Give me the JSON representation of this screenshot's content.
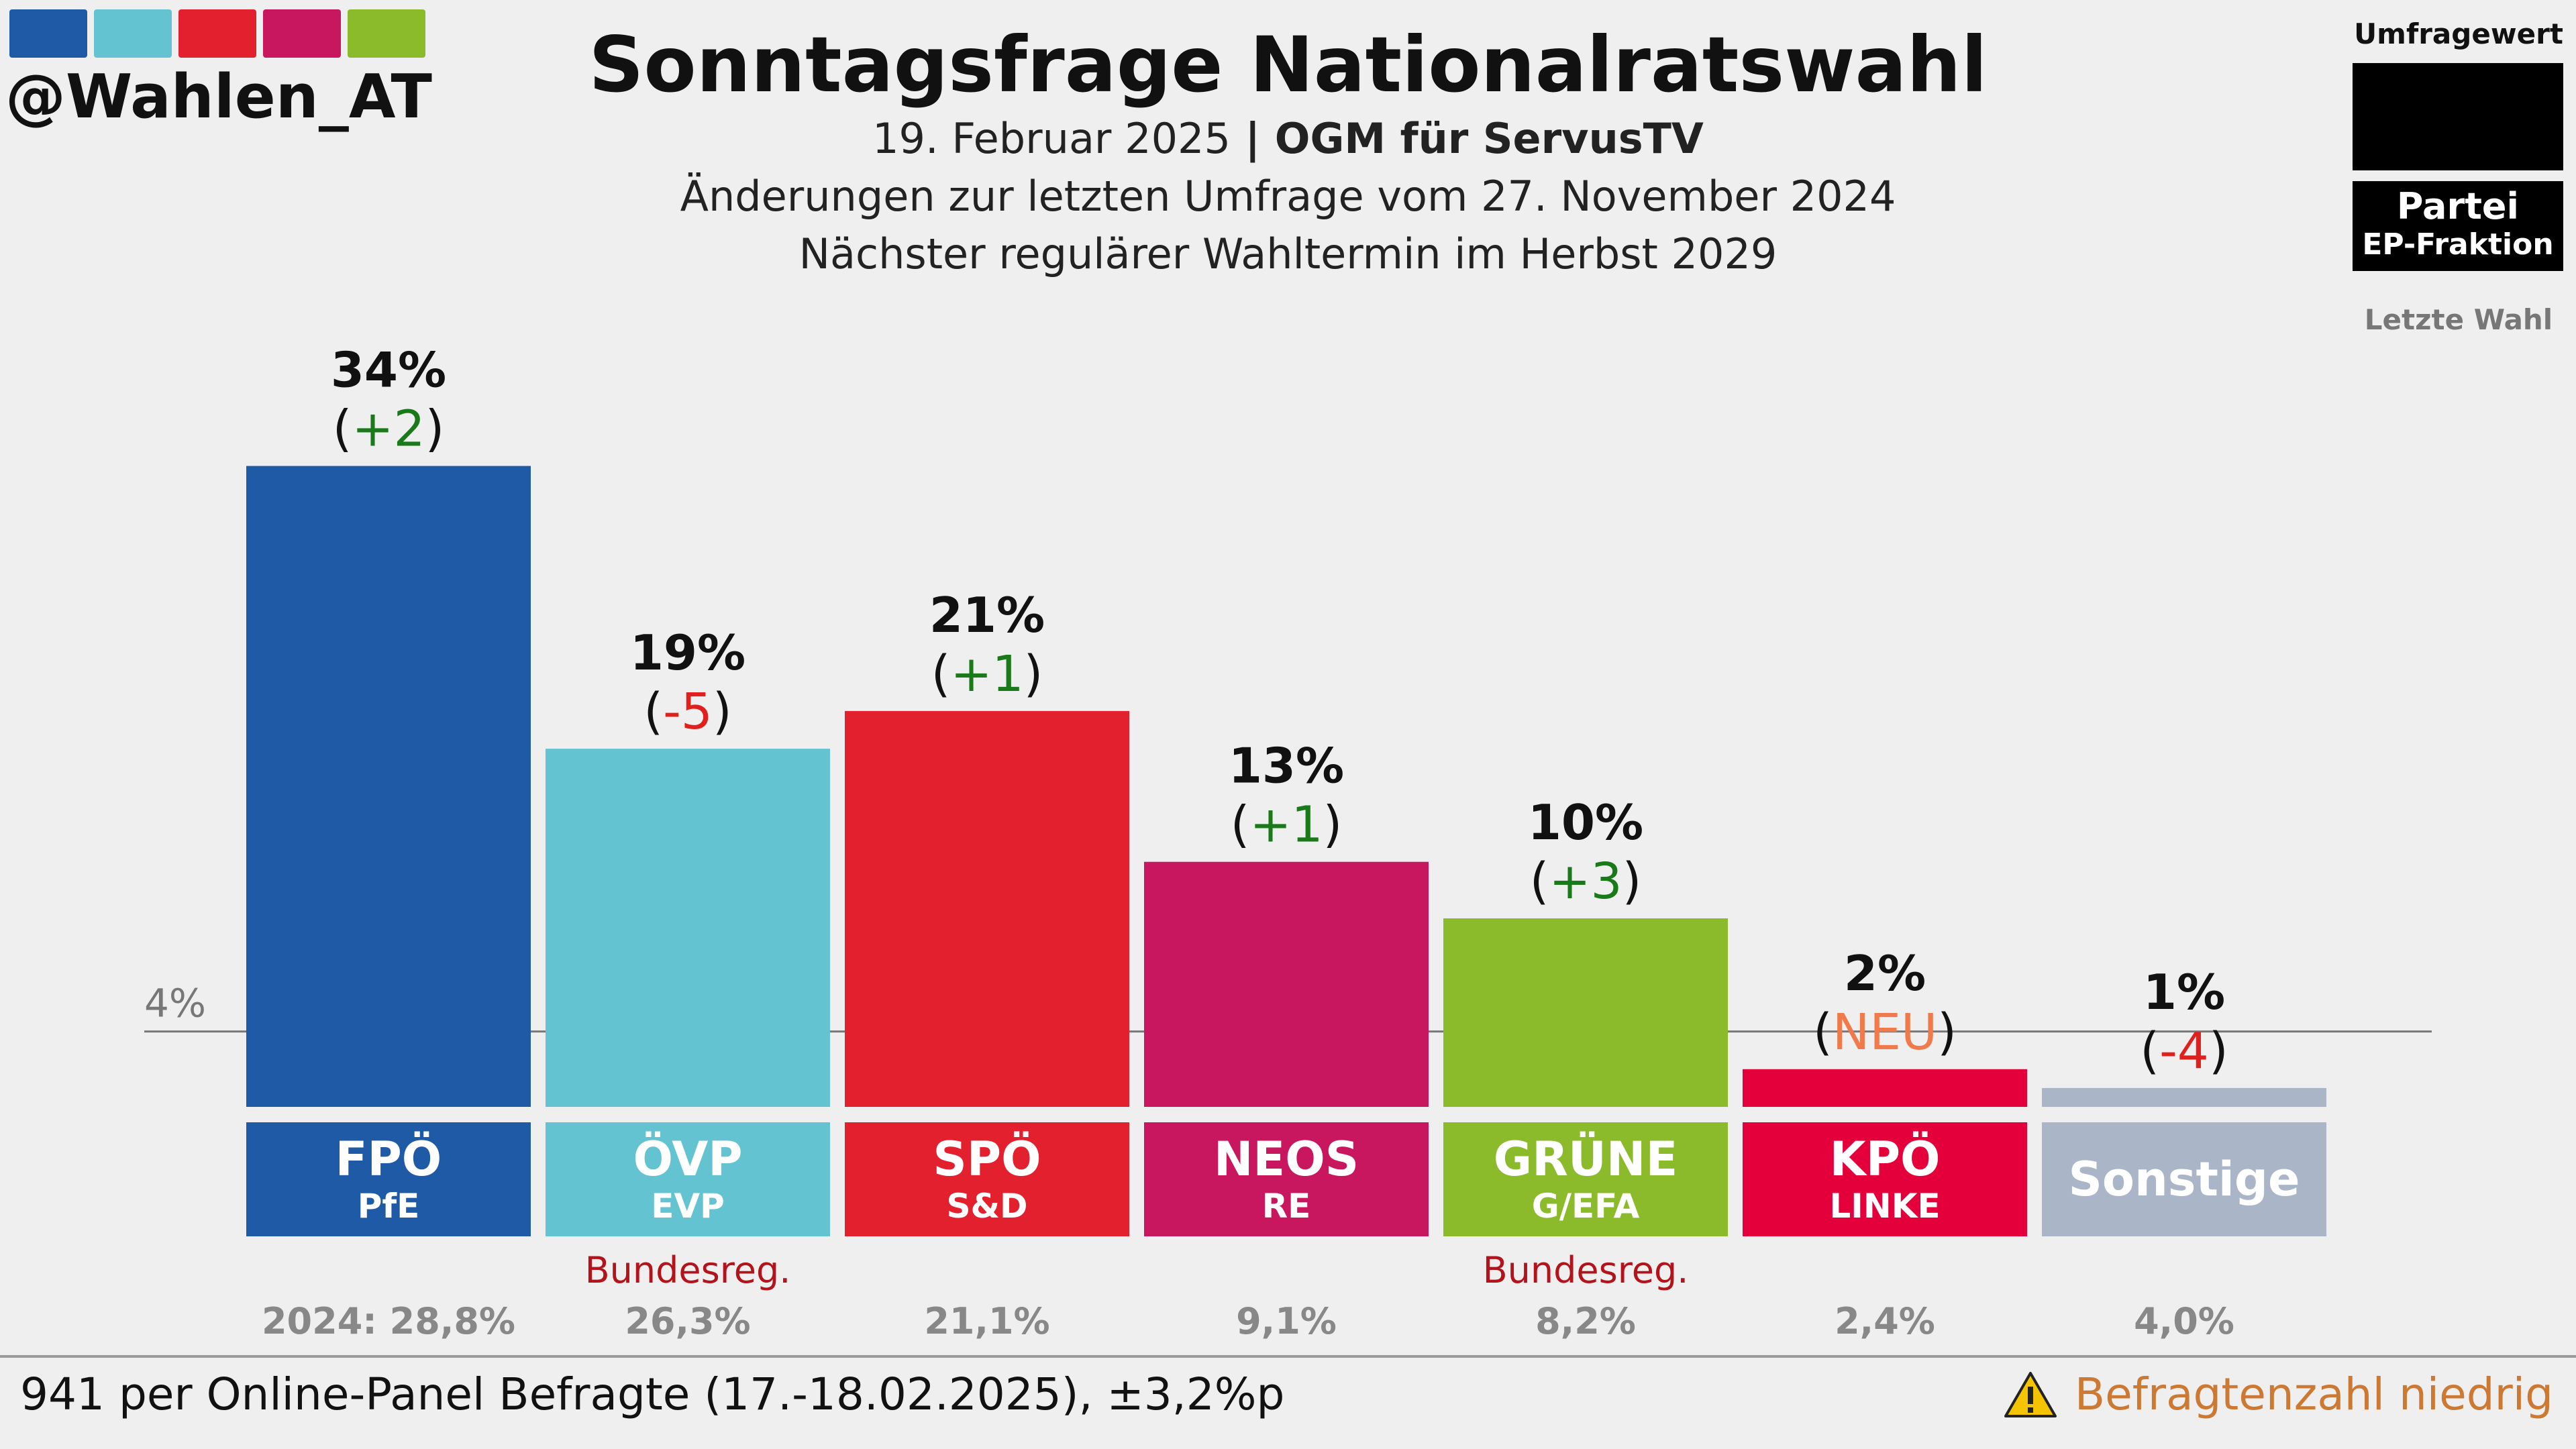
{
  "brand": {
    "handle": "@Wahlen_AT",
    "strip_colors": [
      "#1f5aa6",
      "#63c3d1",
      "#e3202d",
      "#c8175f",
      "#8bba2b"
    ]
  },
  "header": {
    "title": "Sonntagsfrage Nationalratswahl",
    "date": "19. Februar 2025",
    "separator": " | ",
    "pollster": "OGM für ServusTV",
    "change_note": "Änderungen zur letzten Umfrage vom 27. November 2024",
    "next_election": "Nächster regulärer Wahltermin im Herbst 2029"
  },
  "legend": {
    "poll_value": "Umfragewert",
    "party": "Partei",
    "ep_group": "EP-Fraktion",
    "last_election": "Letzte Wahl"
  },
  "threshold_label": "4%",
  "last_election_prefix": "2024: ",
  "footer": {
    "sample": "941 per Online-Panel Befragte (17.-18.02.2025), ±3,2%p",
    "warning": "Befragtenzahl niedrig"
  },
  "chart_data": {
    "type": "bar",
    "title": "Sonntagsfrage Nationalratswahl",
    "unit": "%",
    "threshold": 4,
    "categories": [
      "FPÖ",
      "ÖVP",
      "SPÖ",
      "NEOS",
      "GRÜNE",
      "KPÖ",
      "Sonstige"
    ],
    "values": [
      34,
      19,
      21,
      13,
      10,
      2,
      1
    ],
    "value_labels": [
      "34%",
      "19%",
      "21%",
      "13%",
      "10%",
      "2%",
      "1%"
    ],
    "changes": [
      "+2",
      "-5",
      "+1",
      "+1",
      "+3",
      "NEU",
      "-4"
    ],
    "change_colors": [
      "#1a7a1a",
      "#e0201c",
      "#1a7a1a",
      "#1a7a1a",
      "#1a7a1a",
      "#f07a4a",
      "#e0201c"
    ],
    "ep_groups": [
      "PfE",
      "EVP",
      "S&D",
      "RE",
      "G/EFA",
      "LINKE",
      ""
    ],
    "government": [
      "",
      "Bundesreg.",
      "",
      "",
      "Bundesreg.",
      "",
      ""
    ],
    "last_election": [
      "28,8%",
      "26,3%",
      "21,1%",
      "9,1%",
      "8,2%",
      "2,4%",
      "4,0%"
    ],
    "colors": [
      "#1f5aa6",
      "#63c3d1",
      "#e3202d",
      "#c8175f",
      "#8bba2b",
      "#e4003a",
      "#aab5c8"
    ]
  }
}
